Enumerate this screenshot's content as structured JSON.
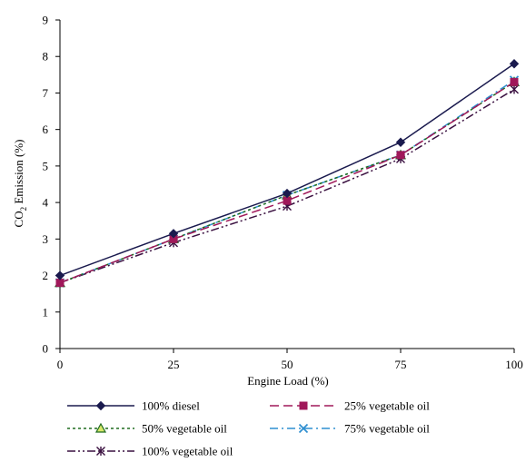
{
  "chart_data": {
    "type": "line",
    "title": "",
    "xlabel": "Engine Load (%)",
    "ylabel_main": "CO",
    "ylabel_sub": "2",
    "ylabel_tail": " Emission (%)",
    "x": [
      0,
      25,
      50,
      75,
      100
    ],
    "x_ticks": [
      "0",
      "25",
      "50",
      "75",
      "100"
    ],
    "y_ticks": [
      "0",
      "1",
      "2",
      "3",
      "4",
      "5",
      "6",
      "7",
      "8",
      "9"
    ],
    "xlim": [
      0,
      100
    ],
    "ylim": [
      0,
      9
    ],
    "grid": false,
    "legend_position": "bottom",
    "series": [
      {
        "name": "100% diesel",
        "values": [
          2.0,
          3.15,
          4.25,
          5.65,
          7.8
        ],
        "color": "#1a1a4e",
        "marker": "diamond",
        "dash": "solid"
      },
      {
        "name": "25% vegetable oil",
        "values": [
          1.8,
          3.0,
          4.05,
          5.3,
          7.3
        ],
        "color": "#a0185a",
        "marker": "square",
        "dash": "long-dash"
      },
      {
        "name": "50% vegetable oil",
        "values": [
          1.8,
          3.0,
          4.2,
          5.3,
          7.3
        ],
        "color": "#1f6b1f",
        "marker": "triangle",
        "dash": "dotted"
      },
      {
        "name": "75% vegetable oil",
        "values": [
          1.8,
          3.0,
          4.2,
          5.3,
          7.35
        ],
        "color": "#2f8fd0",
        "marker": "x",
        "dash": "dash-dot"
      },
      {
        "name": "100% vegetable oil",
        "values": [
          1.8,
          2.9,
          3.9,
          5.2,
          7.1
        ],
        "color": "#3a1040",
        "marker": "star",
        "dash": "dash-dot-dot"
      }
    ]
  }
}
